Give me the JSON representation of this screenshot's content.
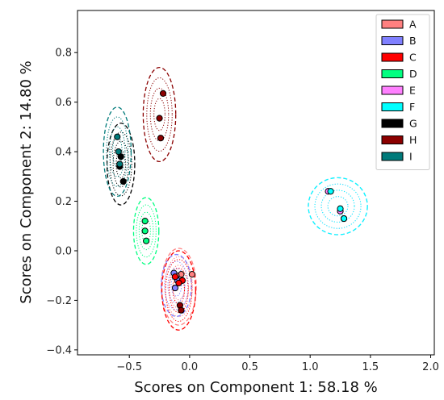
{
  "chart_data": {
    "type": "scatter",
    "title": "",
    "xlabel": "Scores on Component 1: 58.18 %",
    "ylabel": "Scores on Component 2: 14.80 %",
    "xlim": [
      -0.93,
      2.03
    ],
    "ylim": [
      -0.42,
      0.97
    ],
    "x_ticks": [
      -0.5,
      0.0,
      0.5,
      1.0,
      1.5,
      2.0
    ],
    "x_tick_labels": [
      "−0.5",
      "0.0",
      "0.5",
      "1.0",
      "1.5",
      "2.0"
    ],
    "y_ticks": [
      -0.4,
      -0.2,
      0.0,
      0.2,
      0.4,
      0.6,
      0.8
    ],
    "y_tick_labels": [
      "−0.4",
      "−0.2",
      "0.0",
      "0.2",
      "0.4",
      "0.6",
      "0.8"
    ],
    "grid": false,
    "legend_position": "top-right",
    "series": [
      {
        "name": "A",
        "color": "#ff8080",
        "points": [
          [
            -0.07,
            -0.095
          ],
          [
            -0.11,
            -0.1
          ],
          [
            0.02,
            -0.095
          ]
        ],
        "ellipse": {
          "cx": -0.09,
          "cy": -0.145,
          "rx": 0.145,
          "ry": 0.155
        }
      },
      {
        "name": "B",
        "color": "#8080ff",
        "points": [
          [
            -0.12,
            -0.15
          ],
          [
            -0.1,
            -0.12
          ],
          [
            -0.13,
            -0.09
          ]
        ],
        "ellipse": {
          "cx": -0.11,
          "cy": -0.14,
          "rx": 0.125,
          "ry": 0.125
        }
      },
      {
        "name": "C",
        "color": "#ff0000",
        "points": [
          [
            -0.12,
            -0.105
          ],
          [
            -0.06,
            -0.12
          ],
          [
            -0.09,
            -0.13
          ]
        ],
        "ellipse": {
          "cx": -0.09,
          "cy": -0.16,
          "rx": 0.14,
          "ry": 0.16
        }
      },
      {
        "name": "D",
        "color": "#00ff80",
        "points": [
          [
            -0.37,
            0.12
          ],
          [
            -0.37,
            0.08
          ],
          [
            -0.36,
            0.04
          ]
        ],
        "ellipse": {
          "cx": -0.36,
          "cy": 0.08,
          "rx": 0.105,
          "ry": 0.135
        }
      },
      {
        "name": "E",
        "color": "#ff80ff",
        "points": [
          [
            1.15,
            0.24
          ],
          [
            1.25,
            0.16
          ],
          [
            1.28,
            0.13
          ]
        ],
        "ellipse": {
          "cx": 1.23,
          "cy": 0.18,
          "rx": 0.245,
          "ry": 0.115
        }
      },
      {
        "name": "F",
        "color": "#00ffff",
        "points": [
          [
            1.17,
            0.24
          ],
          [
            1.25,
            0.17
          ],
          [
            1.28,
            0.13
          ]
        ],
        "ellipse": {
          "cx": 1.23,
          "cy": 0.18,
          "rx": 0.245,
          "ry": 0.115
        }
      },
      {
        "name": "G",
        "color": "#000000",
        "points": [
          [
            -0.57,
            0.38
          ],
          [
            -0.58,
            0.34
          ],
          [
            -0.55,
            0.28
          ]
        ],
        "ellipse": {
          "cx": -0.57,
          "cy": 0.35,
          "rx": 0.115,
          "ry": 0.165
        }
      },
      {
        "name": "H",
        "color": "#8b0000",
        "points": [
          [
            -0.22,
            0.635
          ],
          [
            -0.25,
            0.535
          ],
          [
            -0.24,
            0.455
          ],
          [
            -0.08,
            -0.22
          ],
          [
            -0.07,
            -0.24
          ]
        ],
        "ellipse": {
          "cx": -0.25,
          "cy": 0.55,
          "rx": 0.135,
          "ry": 0.19
        }
      },
      {
        "name": "I",
        "color": "#007a7a",
        "points": [
          [
            -0.6,
            0.46
          ],
          [
            -0.59,
            0.4
          ],
          [
            -0.58,
            0.35
          ]
        ],
        "ellipse": {
          "cx": -0.6,
          "cy": 0.4,
          "rx": 0.115,
          "ry": 0.18
        }
      }
    ]
  }
}
